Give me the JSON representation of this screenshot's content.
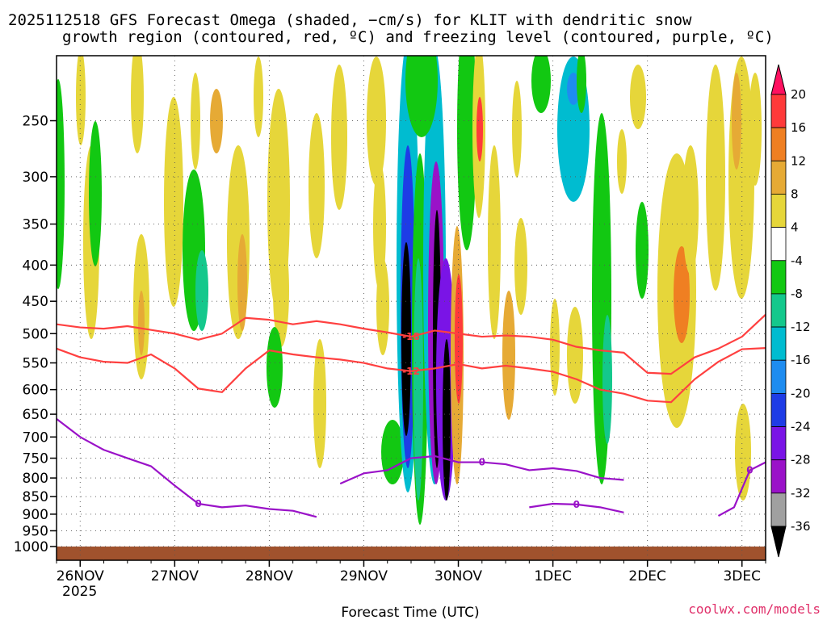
{
  "chart_data": {
    "type": "heatmap",
    "title_line1": "2025112518 GFS Forecast Omega (shaded, −cm/s) for KLIT with dendritic snow",
    "title_line2": "growth region (contoured, red, ºC) and freezing level (contoured, purple, ºC)",
    "xlabel": "Forecast Time (UTC)",
    "year_label": "2025",
    "x_ticks": [
      {
        "label": "26NOV",
        "hour": 6
      },
      {
        "label": "27NOV",
        "hour": 30
      },
      {
        "label": "28NOV",
        "hour": 54
      },
      {
        "label": "29NOV",
        "hour": 78
      },
      {
        "label": "30NOV",
        "hour": 102
      },
      {
        "label": "1DEC",
        "hour": 126
      },
      {
        "label": "2DEC",
        "hour": 150
      },
      {
        "label": "3DEC",
        "hour": 174
      }
    ],
    "x_range_hours": [
      0,
      180
    ],
    "y_ticks": [
      250,
      300,
      350,
      400,
      450,
      500,
      550,
      600,
      650,
      700,
      750,
      800,
      850,
      900,
      950,
      1000
    ],
    "y_range_hpa": [
      200,
      1000
    ],
    "colorbar": {
      "levels": [
        20,
        16,
        12,
        8,
        4,
        -4,
        -8,
        -12,
        -16,
        -20,
        -24,
        -28,
        -32,
        -36
      ],
      "colors": [
        "#ff1060",
        "#ff3a3a",
        "#ef7f22",
        "#e6aa35",
        "#e6d63a",
        "#ffffff",
        "#12c812",
        "#14c88c",
        "#00bcd0",
        "#1e8cf0",
        "#1e3ce6",
        "#7a14e6",
        "#9a12c8",
        "#a0a0a0",
        "#000000"
      ]
    },
    "contours": {
      "red": [
        {
          "label": "-18",
          "points": [
            [
              0,
              485
            ],
            [
              6,
              490
            ],
            [
              12,
              492
            ],
            [
              18,
              488
            ],
            [
              24,
              494
            ],
            [
              30,
              500
            ],
            [
              36,
              510
            ],
            [
              42,
              500
            ],
            [
              48,
              475
            ],
            [
              54,
              478
            ],
            [
              60,
              485
            ],
            [
              66,
              480
            ],
            [
              72,
              485
            ],
            [
              78,
              492
            ],
            [
              84,
              498
            ],
            [
              90,
              505
            ],
            [
              96,
              495
            ],
            [
              102,
              500
            ],
            [
              108,
              505
            ],
            [
              114,
              503
            ],
            [
              120,
              505
            ],
            [
              126,
              510
            ],
            [
              132,
              522
            ],
            [
              138,
              528
            ],
            [
              144,
              532
            ],
            [
              150,
              568
            ],
            [
              156,
              570
            ],
            [
              162,
              540
            ],
            [
              168,
              525
            ],
            [
              174,
              505
            ],
            [
              180,
              470
            ]
          ]
        },
        {
          "label": "-12",
          "points": [
            [
              0,
              525
            ],
            [
              6,
              540
            ],
            [
              12,
              548
            ],
            [
              18,
              550
            ],
            [
              24,
              535
            ],
            [
              30,
              560
            ],
            [
              36,
              598
            ],
            [
              42,
              605
            ],
            [
              48,
              560
            ],
            [
              54,
              528
            ],
            [
              60,
              535
            ],
            [
              66,
              540
            ],
            [
              72,
              544
            ],
            [
              78,
              550
            ],
            [
              84,
              560
            ],
            [
              90,
              565
            ],
            [
              96,
              560
            ],
            [
              102,
              552
            ],
            [
              108,
              560
            ],
            [
              114,
              555
            ],
            [
              120,
              560
            ],
            [
              126,
              566
            ],
            [
              132,
              580
            ],
            [
              138,
              600
            ],
            [
              144,
              608
            ],
            [
              150,
              622
            ],
            [
              156,
              625
            ],
            [
              162,
              580
            ],
            [
              168,
              548
            ],
            [
              174,
              526
            ],
            [
              180,
              524
            ]
          ]
        }
      ],
      "purple": [
        {
          "label": "0",
          "points": [
            [
              0,
              660
            ],
            [
              6,
              700
            ],
            [
              12,
              730
            ],
            [
              18,
              750
            ],
            [
              24,
              770
            ],
            [
              30,
              820
            ],
            [
              36,
              870
            ],
            [
              42,
              880
            ],
            [
              48,
              875
            ],
            [
              54,
              885
            ],
            [
              60,
              890
            ],
            [
              66,
              908
            ]
          ]
        },
        {
          "label": "0",
          "points": [
            [
              72,
              815
            ],
            [
              78,
              788
            ],
            [
              84,
              780
            ],
            [
              90,
              750
            ],
            [
              96,
              745
            ],
            [
              102,
              760
            ],
            [
              108,
              760
            ],
            [
              114,
              765
            ],
            [
              120,
              780
            ],
            [
              126,
              775
            ],
            [
              132,
              782
            ],
            [
              138,
              800
            ],
            [
              144,
              805
            ]
          ]
        },
        {
          "label": "0",
          "points": [
            [
              120,
              880
            ],
            [
              126,
              870
            ],
            [
              132,
              872
            ],
            [
              138,
              880
            ],
            [
              144,
              895
            ]
          ]
        },
        {
          "label": "0",
          "points": [
            [
              168,
              905
            ],
            [
              172,
              880
            ],
            [
              176,
              780
            ],
            [
              180,
              760
            ]
          ]
        }
      ]
    }
  },
  "credit": "coolwx.com/models"
}
